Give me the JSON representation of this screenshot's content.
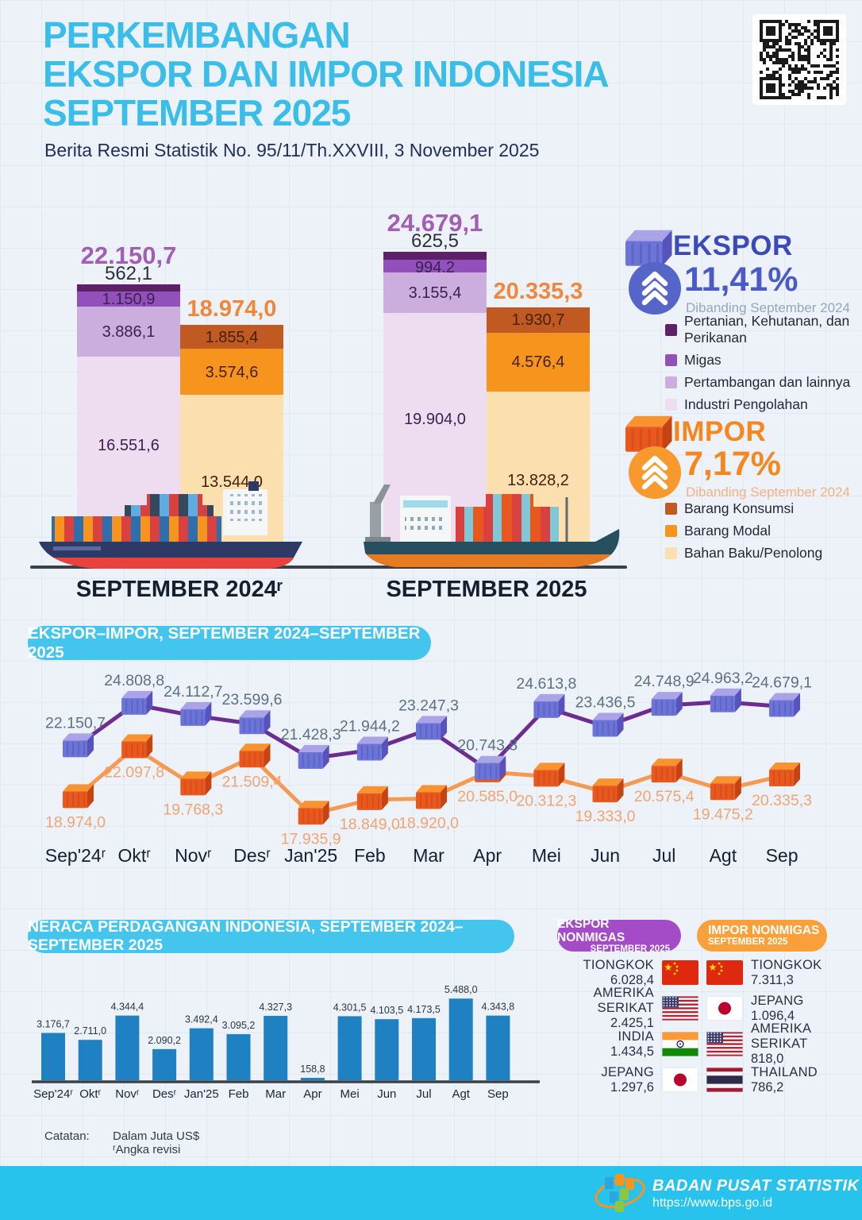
{
  "header": {
    "title_lines": [
      "PERKEMBANGAN",
      "EKSPOR DAN IMPOR INDONESIA",
      "SEPTEMBER 2025"
    ],
    "subtitle": "Berita Resmi Statistik No. 95/11/Th.XXVIII, 3 November 2025"
  },
  "palette": {
    "accent_cyan": "#44C5EE",
    "title_blue": "#3ABEE9",
    "export_total": "#A05EB5",
    "import_total": "#F0873B",
    "export_segments": [
      "#5E2169",
      "#9250BB",
      "#CBAEDD",
      "#EEDDF0"
    ],
    "import_segments": [
      "#C05A22",
      "#F7941E",
      "#FBDFAF"
    ],
    "export_line": "#6B2D91",
    "import_line": "#F59A52",
    "export_marker": {
      "front": "#6C74D8",
      "top": "#ABA3E8",
      "side": "#5852BD",
      "rib": "#4E55B5"
    },
    "import_marker": {
      "front": "#E9581E",
      "top": "#F8932F",
      "side": "#C64312",
      "rib": "#C24A10"
    },
    "ekspor_accent": "#3A4ABA",
    "ekspor_circle": "#5565C8",
    "impor_accent": "#F6871F",
    "impor_circle": "#F8992E",
    "balance_bar": "#1F80C2",
    "nm_ekspor_pill": "#A44BC8",
    "nm_impor_pill": "#F9A03A",
    "footer_cyan": "#28C3EC"
  },
  "ekspor_panel": {
    "title": "EKSPOR",
    "pct": "11,41%",
    "note": "Dibanding September 2024",
    "legend": [
      {
        "label": "Pertanian, Kehutanan, dan Perikanan",
        "color": "#5E2169"
      },
      {
        "label": "Migas",
        "color": "#9250BB"
      },
      {
        "label": "Pertambangan dan lainnya",
        "color": "#CBAEDD"
      },
      {
        "label": "Industri Pengolahan",
        "color": "#EEDDF0"
      }
    ]
  },
  "impor_panel": {
    "title": "IMPOR",
    "pct": "7,17%",
    "note": "Dibanding September 2024",
    "legend": [
      {
        "label": "Barang Konsumsi",
        "color": "#C05A22"
      },
      {
        "label": "Barang Modal",
        "color": "#F7941E"
      },
      {
        "label": "Bahan Baku/Penolong",
        "color": "#FBDFAF"
      }
    ]
  },
  "chart_data": [
    {
      "type": "bar",
      "subtype": "stacked-comparison",
      "unit_note": "Dalam Juta US$",
      "groups": [
        {
          "label": "SEPTEMBER 2024ʳ",
          "ekspor": {
            "total": 22150.7,
            "total_label": "22.150,7",
            "segments": [
              {
                "name": "Pertanian, Kehutanan, dan Perikanan",
                "v": 562.1,
                "label": "562,1"
              },
              {
                "name": "Migas",
                "v": 1150.9,
                "label": "1.150,9"
              },
              {
                "name": "Pertambangan dan lainnya",
                "v": 3886.1,
                "label": "3.886,1"
              },
              {
                "name": "Industri Pengolahan",
                "v": 16551.6,
                "label": "16.551,6"
              }
            ]
          },
          "impor": {
            "total": 18974.0,
            "total_label": "18.974,0",
            "segments": [
              {
                "name": "Barang Konsumsi",
                "v": 1855.4,
                "label": "1.855,4"
              },
              {
                "name": "Barang Modal",
                "v": 3574.6,
                "label": "3.574,6"
              },
              {
                "name": "Bahan Baku/Penolong",
                "v": 13544.0,
                "label": "13.544,0"
              }
            ]
          }
        },
        {
          "label": "SEPTEMBER 2025",
          "ekspor": {
            "total": 24679.1,
            "total_label": "24.679,1",
            "segments": [
              {
                "name": "Pertanian, Kehutanan, dan Perikanan",
                "v": 625.5,
                "label": "625,5"
              },
              {
                "name": "Migas",
                "v": 994.2,
                "label": "994,2"
              },
              {
                "name": "Pertambangan dan lainnya",
                "v": 3155.4,
                "label": "3.155,4"
              },
              {
                "name": "Industri Pengolahan",
                "v": 19904.0,
                "label": "19.904,0"
              }
            ]
          },
          "impor": {
            "total": 20335.3,
            "total_label": "20.335,3",
            "segments": [
              {
                "name": "Barang Konsumsi",
                "v": 1930.7,
                "label": "1.930,7"
              },
              {
                "name": "Barang Modal",
                "v": 4576.4,
                "label": "4.576,4"
              },
              {
                "name": "Bahan Baku/Penolong",
                "v": 13828.2,
                "label": "13.828,2"
              }
            ]
          }
        }
      ]
    },
    {
      "type": "line",
      "title": "EKSPOR–IMPOR, SEPTEMBER 2024–SEPTEMBER 2025",
      "categories": [
        "Sep'24ʳ",
        "Oktʳ",
        "Novʳ",
        "Desʳ",
        "Jan'25",
        "Feb",
        "Mar",
        "Apr",
        "Mei",
        "Jun",
        "Jul",
        "Agt",
        "Sep"
      ],
      "ylim": [
        17700,
        25300
      ],
      "grid": false,
      "legend_position": "none",
      "series": [
        {
          "name": "Ekspor",
          "values": [
            22150.7,
            24808.8,
            24112.7,
            23599.6,
            21428.3,
            21944.2,
            23247.3,
            20743.8,
            24613.8,
            23436.5,
            24748.9,
            24963.2,
            24679.1
          ],
          "labels": [
            "22.150,7",
            "24.808,8",
            "24.112,7",
            "23.599,6",
            "21.428,3",
            "21.944,2",
            "23.247,3",
            "20.743,8",
            "24.613,8",
            "23.436,5",
            "24.748,9",
            "24.963,2",
            "24.679,1"
          ]
        },
        {
          "name": "Impor",
          "values": [
            18974.0,
            22097.8,
            19768.3,
            21509.4,
            17935.9,
            18849.0,
            18920.0,
            20585.0,
            20312.3,
            19333.0,
            20575.4,
            19475.2,
            20335.3
          ],
          "labels": [
            "18.974,0",
            "22.097,8",
            "19.768,3",
            "21.509,4",
            "17.935,9",
            "18.849,0",
            "18.920,0",
            "20.585,0",
            "20.312,3",
            "19.333,0",
            "20.575,4",
            "19.475,2",
            "20.335,3"
          ]
        }
      ]
    },
    {
      "type": "bar",
      "title": "NERACA PERDAGANGAN INDONESIA, SEPTEMBER 2024–SEPTEMBER 2025",
      "categories": [
        "Sep'24ʳ",
        "Oktʳ",
        "Novʳ",
        "Desʳ",
        "Jan'25",
        "Feb",
        "Mar",
        "Apr",
        "Mei",
        "Jun",
        "Jul",
        "Agt",
        "Sep"
      ],
      "ylim": [
        0,
        5800
      ],
      "values": [
        3176.7,
        2711.0,
        4344.4,
        2090.2,
        3492.4,
        3095.2,
        4327.3,
        158.8,
        4301.5,
        4103.5,
        4173.5,
        5488.0,
        4343.8
      ],
      "labels": [
        "3.176,7",
        "2.711,0",
        "4.344,4",
        "2.090,2",
        "3.492,4",
        "3.095,2",
        "4.327,3",
        "158,8",
        "4.301,5",
        "4.103,5",
        "4.173,5",
        "5.488,0",
        "4.343,8"
      ]
    }
  ],
  "nonmigas": {
    "ekspor": {
      "title": "EKSPOR NONMIGAS",
      "subtitle": "SEPTEMBER 2025",
      "items": [
        {
          "country": "TIONGKOK",
          "value": "6.028,4",
          "flag": "china"
        },
        {
          "country": "AMERIKA SERIKAT",
          "value": "2.425,1",
          "flag": "usa"
        },
        {
          "country": "INDIA",
          "value": "1.434,5",
          "flag": "india"
        },
        {
          "country": "JEPANG",
          "value": "1.297,6",
          "flag": "japan"
        }
      ]
    },
    "impor": {
      "title": "IMPOR NONMIGAS",
      "subtitle": "SEPTEMBER 2025",
      "items": [
        {
          "country": "TIONGKOK",
          "value": "7.311,3",
          "flag": "china"
        },
        {
          "country": "JEPANG",
          "value": "1.096,4",
          "flag": "japan"
        },
        {
          "country": "AMERIKA SERIKAT",
          "value": "818,0",
          "flag": "usa"
        },
        {
          "country": "THAILAND",
          "value": "786,2",
          "flag": "thailand"
        }
      ]
    }
  },
  "notes": {
    "label": "Catatan:",
    "line1": "Dalam Juta US$",
    "line2": "ʳAngka revisi"
  },
  "footer": {
    "org": "BADAN PUSAT STATISTIK",
    "url": "https://www.bps.go.id"
  }
}
